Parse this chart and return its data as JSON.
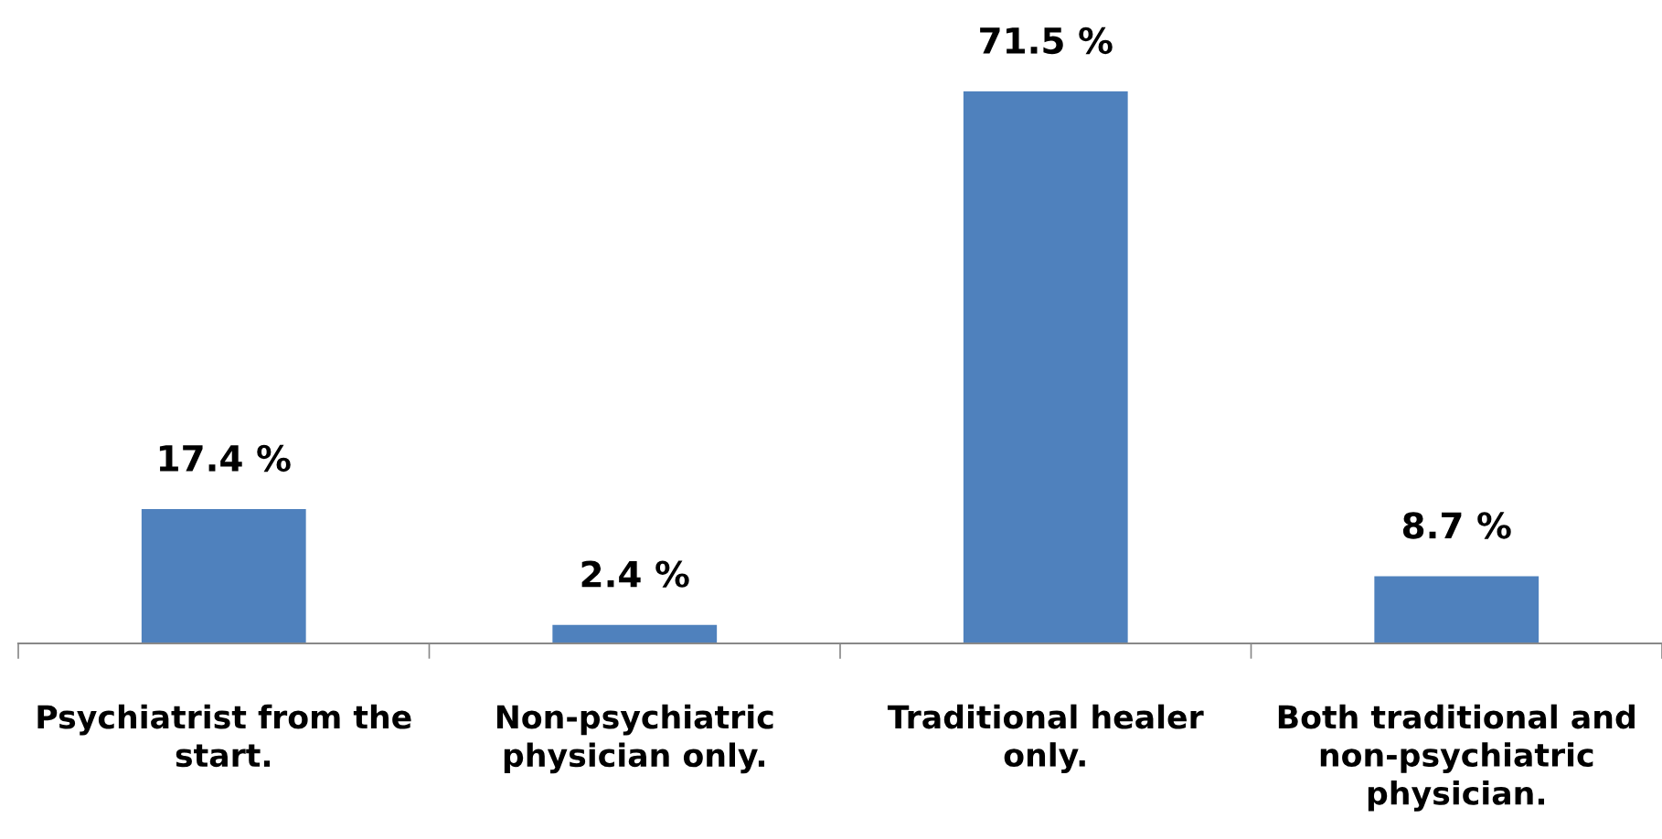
{
  "chart_data": {
    "type": "bar",
    "categories": [
      "Psychiatrist from the start.",
      "Non-psychiatric physician only.",
      "Traditional healer only.",
      "Both traditional and non-psychiatric physician."
    ],
    "values": [
      17.4,
      2.4,
      71.5,
      8.7
    ],
    "value_labels": [
      "17.4 %",
      "2.4 %",
      "71.5 %",
      "8.7 %"
    ],
    "color": "#4f81bd",
    "tick_labels": "x",
    "grid": false,
    "legend": false
  }
}
